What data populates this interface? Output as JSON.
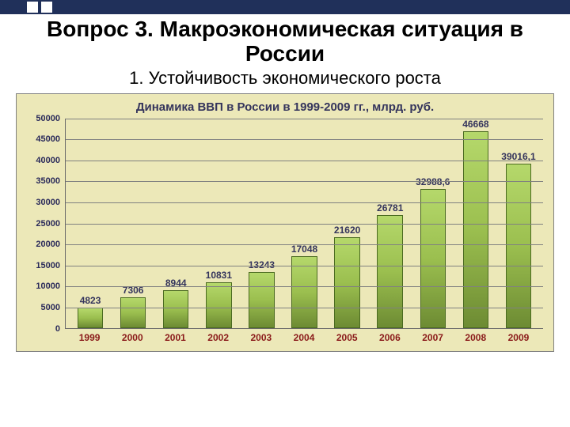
{
  "slide": {
    "main_title": "Вопрос 3. Макроэкономическая ситуация в России",
    "sub_title": "1. Устойчивость экономического роста"
  },
  "chart": {
    "type": "bar",
    "title": "Динамика ВВП в России в 1999-2009 гг., млрд. руб.",
    "title_color": "#34345c",
    "title_fontsize": 15,
    "background_color": "#ece8b8",
    "border_color": "#808080",
    "grid_color": "#808080",
    "categories": [
      "1999",
      "2000",
      "2001",
      "2002",
      "2003",
      "2004",
      "2005",
      "2006",
      "2007",
      "2008",
      "2009"
    ],
    "values": [
      4823,
      7306,
      8944,
      10831,
      13243,
      17048,
      21620,
      26781,
      32988.6,
      46668,
      39016.1
    ],
    "value_labels": [
      "4823",
      "7306",
      "8944",
      "10831",
      "13243",
      "17048",
      "21620",
      "26781",
      "32988,6",
      "46668",
      "39016,1"
    ],
    "bar_fill_top": "#b5d86b",
    "bar_fill_mid": "#9bbf4f",
    "bar_fill_bottom": "#6d8b33",
    "bar_border": "#4a6a20",
    "bar_width": 0.6,
    "ylim": [
      0,
      50000
    ],
    "ytick_step": 5000,
    "yticks": [
      0,
      5000,
      10000,
      15000,
      20000,
      25000,
      30000,
      35000,
      40000,
      45000,
      50000
    ],
    "ytick_color": "#2a2a5a",
    "ytick_fontsize": 11,
    "xtick_color": "#8a1a1a",
    "xtick_fontsize": 12,
    "value_label_color": "#34345c",
    "value_label_fontsize": 12
  },
  "stripe": {
    "background": "#20305a"
  }
}
